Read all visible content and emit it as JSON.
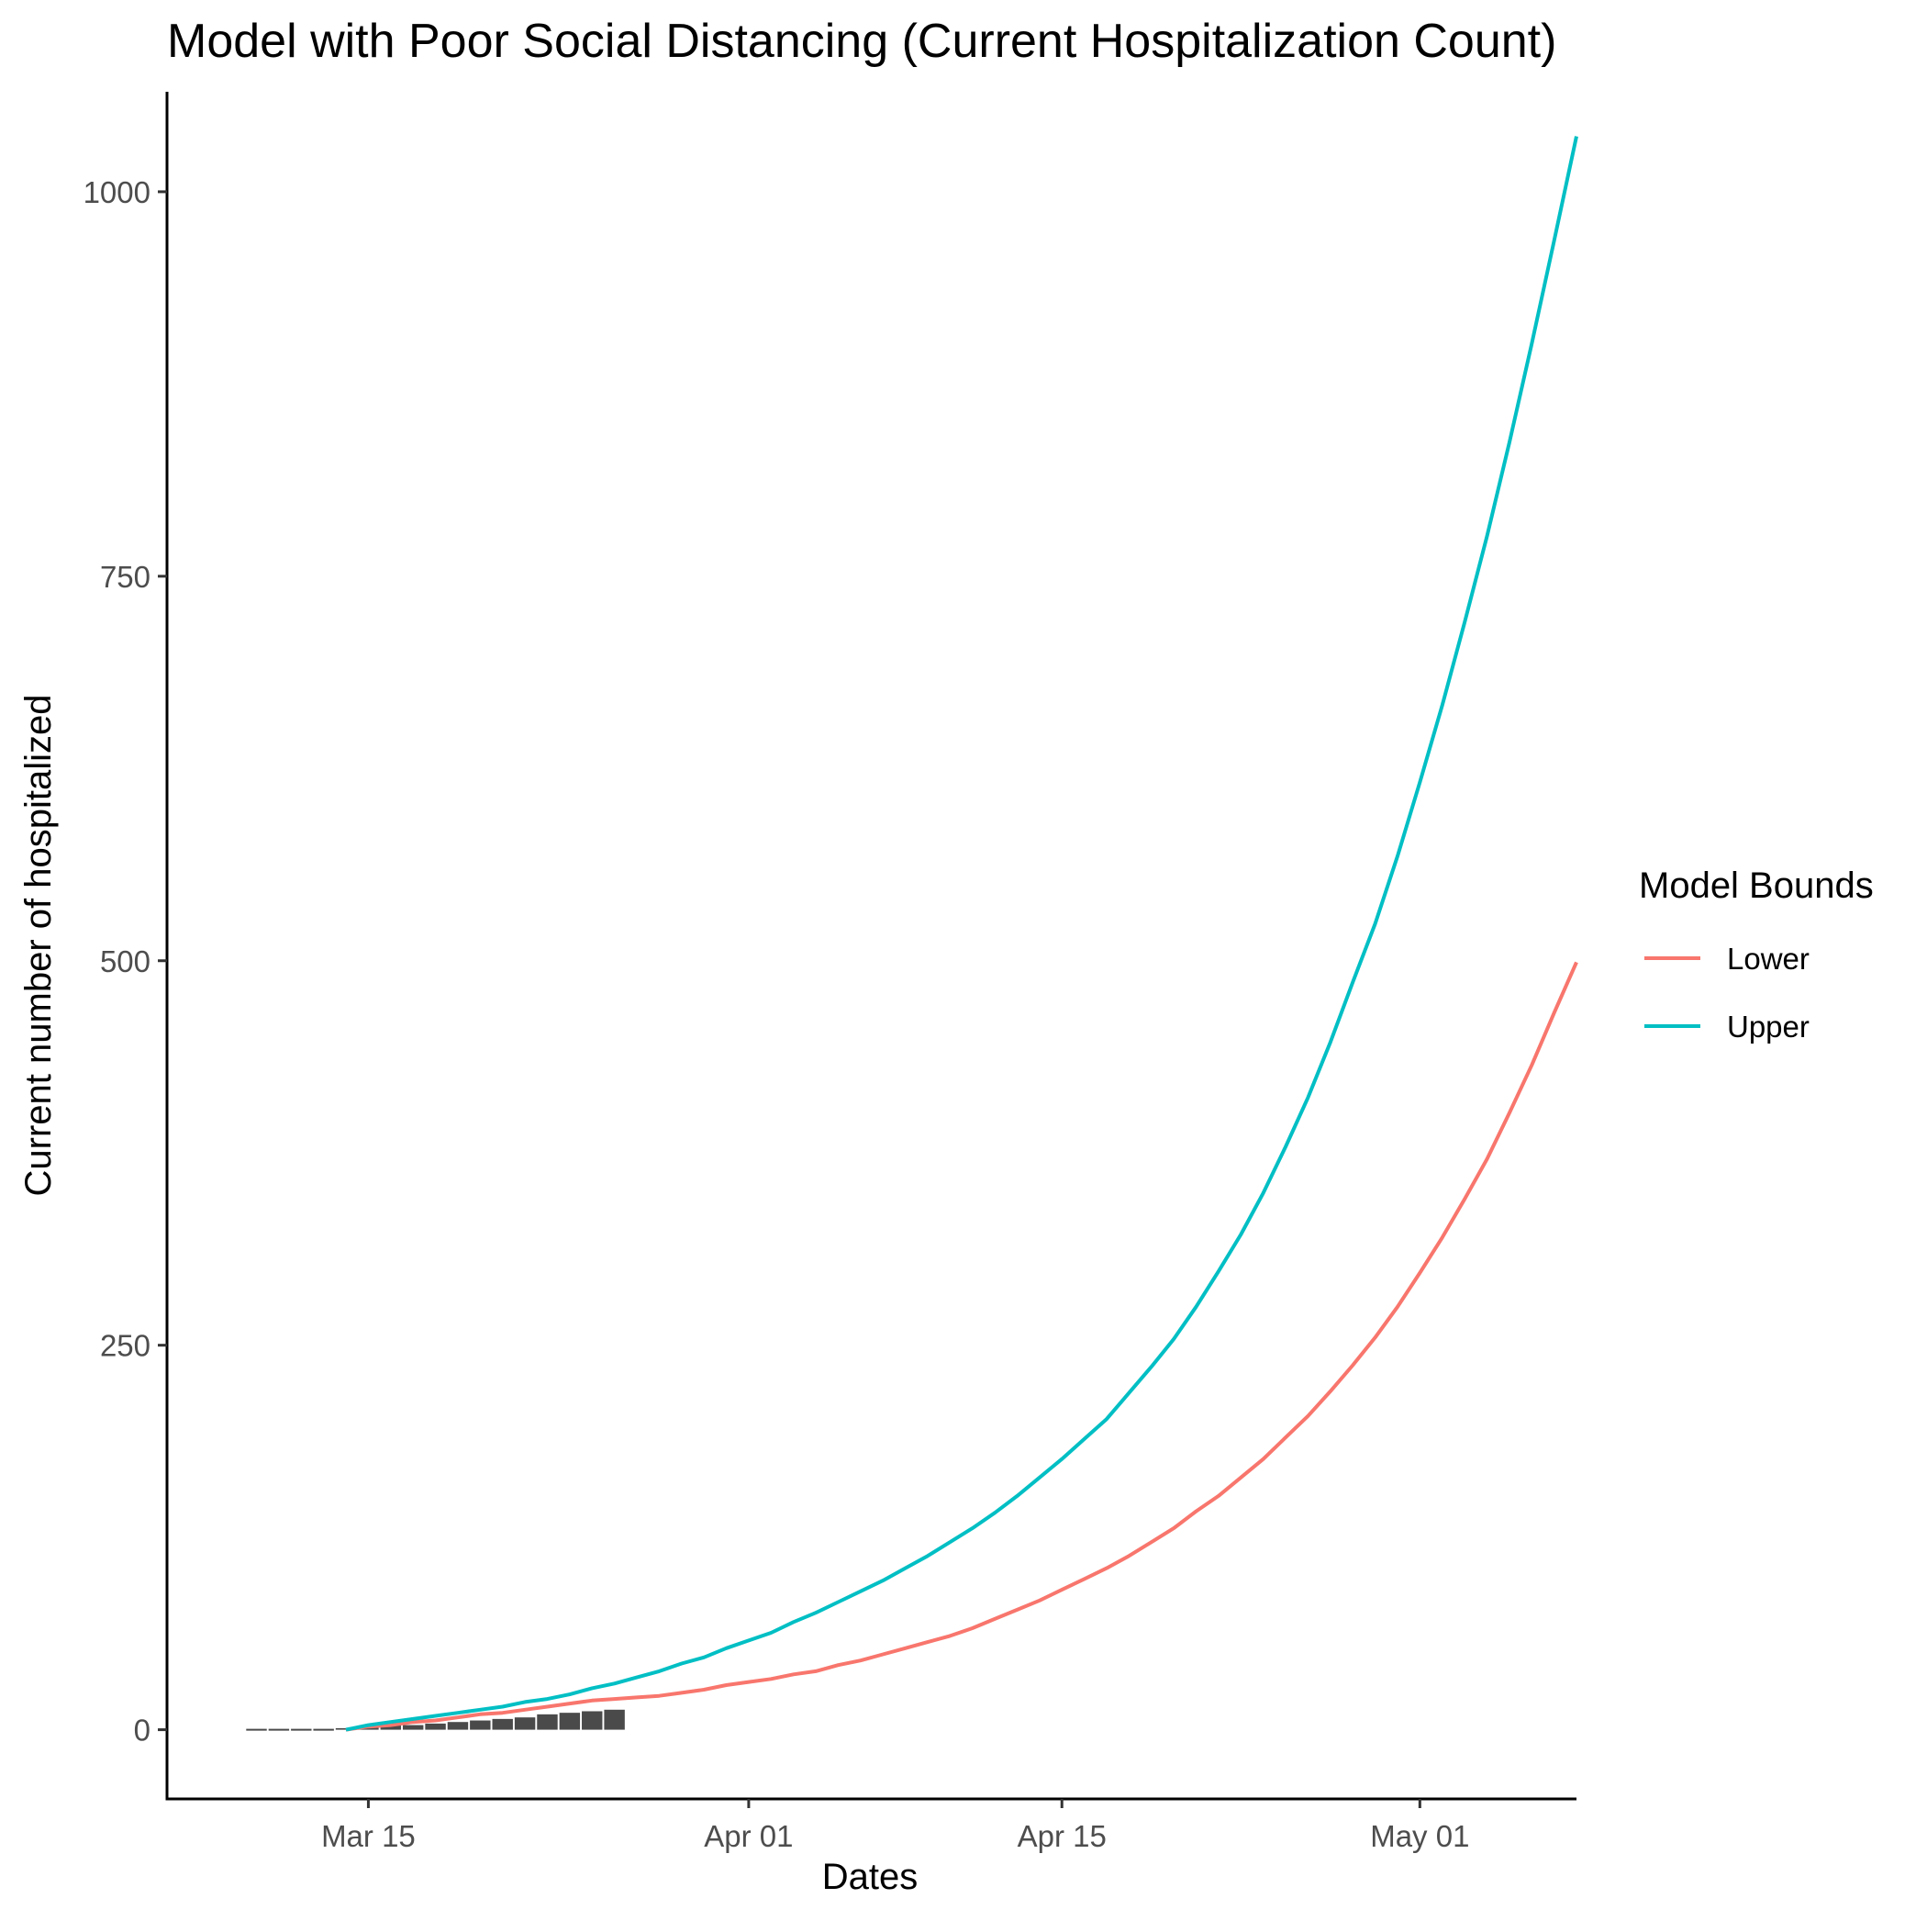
{
  "chart_data": {
    "type": "line",
    "title": "Model with Poor Social Distancing (Current Hospitalization Count)",
    "xlabel": "Dates",
    "ylabel": "Current number of hospitalized",
    "xlim": [
      "2020-03-06",
      "2020-05-08"
    ],
    "ylim": [
      -45,
      1065
    ],
    "x_ticks": [
      {
        "date": "2020-03-15",
        "label": "Mar 15"
      },
      {
        "date": "2020-04-01",
        "label": "Apr 01"
      },
      {
        "date": "2020-04-15",
        "label": "Apr 15"
      },
      {
        "date": "2020-05-01",
        "label": "May 01"
      }
    ],
    "y_ticks": [
      0,
      250,
      500,
      750,
      1000
    ],
    "grid": false,
    "legend": {
      "title": "Model Bounds",
      "position": "right",
      "entries": [
        {
          "name": "Lower",
          "color": "#F8766D"
        },
        {
          "name": "Upper",
          "color": "#00BFC4"
        }
      ]
    },
    "bars": {
      "color": "#4a4a4a",
      "points": [
        {
          "date": "2020-03-10",
          "value": 0
        },
        {
          "date": "2020-03-11",
          "value": 0
        },
        {
          "date": "2020-03-12",
          "value": 0
        },
        {
          "date": "2020-03-13",
          "value": 0
        },
        {
          "date": "2020-03-14",
          "value": 1
        },
        {
          "date": "2020-03-15",
          "value": 2
        },
        {
          "date": "2020-03-16",
          "value": 3
        },
        {
          "date": "2020-03-17",
          "value": 3
        },
        {
          "date": "2020-03-18",
          "value": 4
        },
        {
          "date": "2020-03-19",
          "value": 5
        },
        {
          "date": "2020-03-20",
          "value": 6
        },
        {
          "date": "2020-03-21",
          "value": 7
        },
        {
          "date": "2020-03-22",
          "value": 8
        },
        {
          "date": "2020-03-23",
          "value": 10
        },
        {
          "date": "2020-03-24",
          "value": 11
        },
        {
          "date": "2020-03-25",
          "value": 12
        },
        {
          "date": "2020-03-26",
          "value": 13
        }
      ]
    },
    "series": [
      {
        "name": "Lower",
        "color": "#F8766D",
        "start_date": "2020-03-14",
        "values": [
          0,
          2,
          3,
          5,
          6,
          8,
          10,
          11,
          13,
          15,
          17,
          19,
          20,
          21,
          22,
          24,
          26,
          29,
          31,
          33,
          36,
          38,
          42,
          45,
          49,
          53,
          57,
          61,
          66,
          72,
          78,
          84,
          91,
          98,
          105,
          113,
          122,
          131,
          142,
          152,
          164,
          176,
          190,
          204,
          220,
          237,
          255,
          275,
          297,
          320,
          345,
          371,
          401,
          432,
          466,
          499
        ]
      },
      {
        "name": "Upper",
        "color": "#00BFC4",
        "start_date": "2020-03-14",
        "values": [
          0,
          3,
          5,
          7,
          9,
          11,
          13,
          15,
          18,
          20,
          23,
          27,
          30,
          34,
          38,
          43,
          47,
          53,
          58,
          63,
          70,
          76,
          83,
          90,
          97,
          105,
          113,
          122,
          131,
          141,
          152,
          164,
          176,
          189,
          202,
          219,
          236,
          254,
          275,
          298,
          322,
          349,
          379,
          411,
          447,
          486,
          524,
          568,
          616,
          666,
          720,
          776,
          837,
          901,
          968,
          1036
        ]
      }
    ]
  }
}
